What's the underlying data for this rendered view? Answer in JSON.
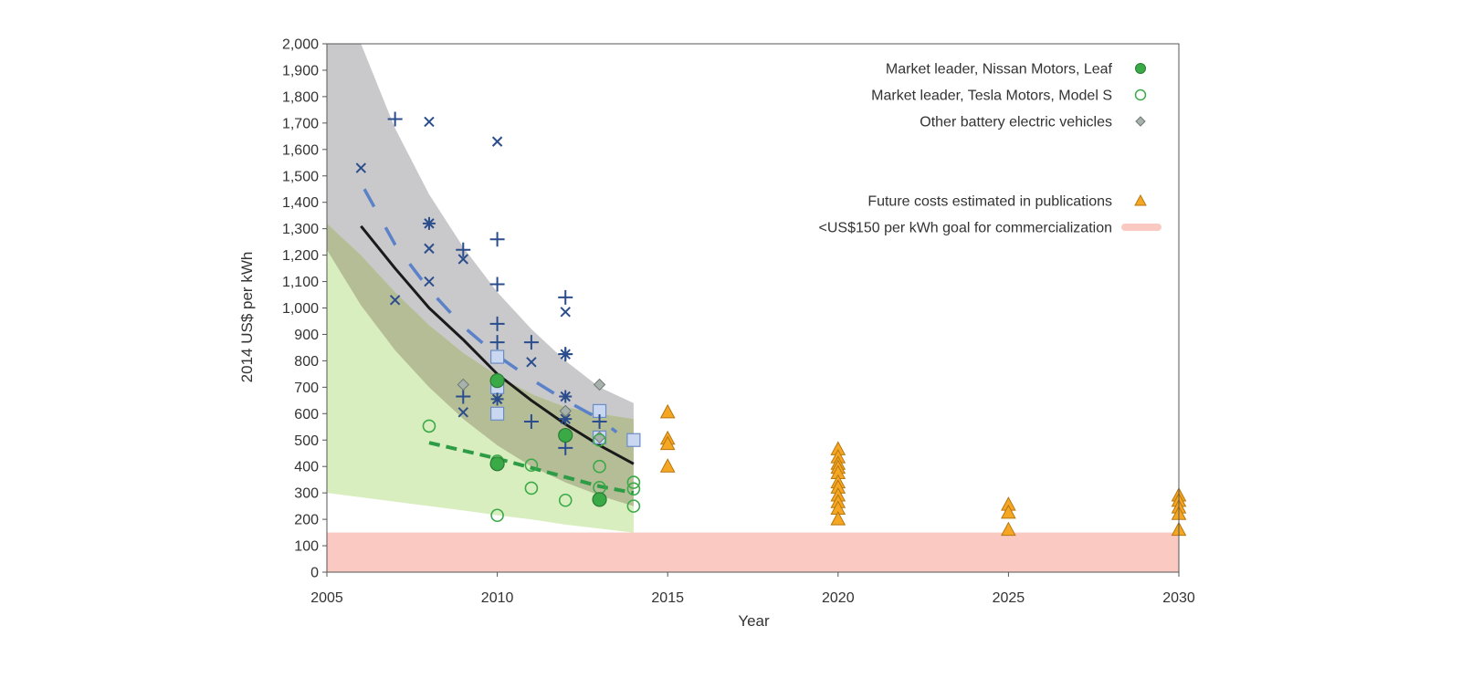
{
  "chart_data": {
    "type": "scatter",
    "xlabel": "Year",
    "ylabel": "2014 US$ per kWh",
    "xlim": [
      2005,
      2030
    ],
    "ylim": [
      0,
      2000
    ],
    "x_ticks": [
      "2005",
      "2010",
      "2015",
      "2020",
      "2025",
      "2030"
    ],
    "y_ticks": [
      "0",
      "100",
      "200",
      "300",
      "400",
      "500",
      "600",
      "700",
      "800",
      "900",
      "1,000",
      "1,100",
      "1,200",
      "1,300",
      "1,400",
      "1,500",
      "1,600",
      "1,700",
      "1,800",
      "1,900",
      "2,000"
    ],
    "grid": false,
    "legend_position": "top-right",
    "colors": {
      "nissan": "#3aaa47",
      "tesla": "#3aaa47",
      "other_bev": "#9aa5a0",
      "future": "#f5a623",
      "goal_band": "#f9c9c2",
      "industry_band": "#c9c9cc",
      "leader_band": "#d9eebf",
      "overlap_band": "#b5bd97",
      "industry_trend": "#1a1a1a",
      "other_trend": "#5b82c9",
      "leader_trend": "#2e9c45",
      "cross": "#2b4d8c",
      "square_fill": "#c9d7f0",
      "square_stroke": "#6c8cc6"
    },
    "legend": [
      {
        "label": "Market leader, Nissan Motors, Leaf",
        "marker": "filled-circle"
      },
      {
        "label": "Market leader, Tesla Motors, Model S",
        "marker": "open-circle"
      },
      {
        "label": "Other battery electric vehicles",
        "marker": "diamond"
      },
      {
        "label": "Future costs estimated in publications",
        "marker": "triangle"
      },
      {
        "label": "<US$150 per kWh goal for commercialization",
        "marker": "band"
      }
    ],
    "goal_band": {
      "y0": 0,
      "y1": 150
    },
    "bands": [
      {
        "name": "industry",
        "upper": [
          [
            2005,
            2000
          ],
          [
            2006,
            2000
          ],
          [
            2007,
            1680
          ],
          [
            2008,
            1430
          ],
          [
            2009,
            1230
          ],
          [
            2010,
            1060
          ],
          [
            2011,
            920
          ],
          [
            2012,
            800
          ],
          [
            2013,
            700
          ],
          [
            2014,
            640
          ]
        ],
        "lower": [
          [
            2014,
            250
          ],
          [
            2013,
            290
          ],
          [
            2012,
            340
          ],
          [
            2011,
            400
          ],
          [
            2010,
            480
          ],
          [
            2009,
            580
          ],
          [
            2008,
            700
          ],
          [
            2007,
            840
          ],
          [
            2006,
            1010
          ],
          [
            2005,
            1220
          ]
        ]
      },
      {
        "name": "leader",
        "upper": [
          [
            2005,
            1320
          ],
          [
            2006,
            1200
          ],
          [
            2007,
            1060
          ],
          [
            2008,
            935
          ],
          [
            2009,
            830
          ],
          [
            2010,
            745
          ],
          [
            2011,
            675
          ],
          [
            2012,
            625
          ],
          [
            2013,
            600
          ],
          [
            2014,
            580
          ]
        ],
        "lower": [
          [
            2014,
            150
          ],
          [
            2013,
            165
          ],
          [
            2012,
            180
          ],
          [
            2011,
            200
          ],
          [
            2010,
            215
          ],
          [
            2009,
            235
          ],
          [
            2008,
            255
          ],
          [
            2007,
            275
          ],
          [
            2006,
            295
          ],
          [
            2005,
            315
          ]
        ]
      },
      {
        "name": "leader-lower-fill",
        "upper": [
          [
            2005,
            930
          ],
          [
            2006,
            830
          ],
          [
            2007,
            730
          ],
          [
            2008,
            640
          ],
          [
            2009,
            565
          ],
          [
            2010,
            500
          ],
          [
            2011,
            445
          ],
          [
            2012,
            400
          ],
          [
            2013,
            360
          ],
          [
            2014,
            330
          ]
        ],
        "lower": [
          [
            2014,
            150
          ],
          [
            2005,
            300
          ]
        ]
      }
    ],
    "trend_lines": [
      {
        "name": "industry",
        "style": "solid",
        "points": [
          [
            2006,
            1310
          ],
          [
            2007,
            1150
          ],
          [
            2008,
            1000
          ],
          [
            2009,
            880
          ],
          [
            2010,
            750
          ],
          [
            2011,
            650
          ],
          [
            2012,
            560
          ],
          [
            2013,
            480
          ],
          [
            2014,
            410
          ]
        ]
      },
      {
        "name": "other-bev",
        "style": "dashed",
        "points": [
          [
            2006.1,
            1450
          ],
          [
            2007,
            1240
          ],
          [
            2008,
            1070
          ],
          [
            2009,
            930
          ],
          [
            2010,
            820
          ],
          [
            2011,
            730
          ],
          [
            2012,
            650
          ],
          [
            2013,
            580
          ],
          [
            2013.5,
            530
          ]
        ]
      },
      {
        "name": "market-leaders",
        "style": "dashed",
        "points": [
          [
            2008,
            490
          ],
          [
            2009,
            460
          ],
          [
            2010,
            430
          ],
          [
            2011,
            395
          ],
          [
            2012,
            360
          ],
          [
            2013,
            325
          ],
          [
            2014,
            300
          ]
        ]
      }
    ],
    "series": [
      {
        "name": "Market leader, Nissan Motors, Leaf",
        "marker": "filled-circle",
        "points": [
          [
            2010,
            725
          ],
          [
            2010,
            410
          ],
          [
            2012,
            518
          ],
          [
            2013,
            275
          ]
        ]
      },
      {
        "name": "Market leader, Tesla Motors, Model S",
        "marker": "open-circle",
        "points": [
          [
            2008,
            553
          ],
          [
            2010,
            420
          ],
          [
            2010,
            215
          ],
          [
            2011,
            405
          ],
          [
            2011,
            318
          ],
          [
            2012,
            272
          ],
          [
            2013,
            400
          ],
          [
            2013,
            320
          ],
          [
            2013,
            500
          ],
          [
            2014,
            340
          ],
          [
            2014,
            315
          ],
          [
            2014,
            250
          ]
        ]
      },
      {
        "name": "Other battery electric vehicles",
        "marker": "diamond",
        "points": [
          [
            2009,
            710
          ],
          [
            2012,
            610
          ],
          [
            2013,
            710
          ],
          [
            2013,
            510
          ]
        ]
      },
      {
        "name": "Future costs estimated in publications",
        "marker": "triangle",
        "points": [
          [
            2015,
            605
          ],
          [
            2015,
            505
          ],
          [
            2015,
            485
          ],
          [
            2015,
            400
          ],
          [
            2020,
            465
          ],
          [
            2020,
            435
          ],
          [
            2020,
            410
          ],
          [
            2020,
            395
          ],
          [
            2020,
            375
          ],
          [
            2020,
            340
          ],
          [
            2020,
            320
          ],
          [
            2020,
            290
          ],
          [
            2020,
            265
          ],
          [
            2020,
            240
          ],
          [
            2020,
            200
          ],
          [
            2025,
            255
          ],
          [
            2025,
            225
          ],
          [
            2025,
            160
          ],
          [
            2030,
            290
          ],
          [
            2030,
            270
          ],
          [
            2030,
            245
          ],
          [
            2030,
            220
          ],
          [
            2030,
            160
          ]
        ]
      },
      {
        "marker": "x",
        "points": [
          [
            2006,
            1530
          ],
          [
            2007,
            1030
          ],
          [
            2008,
            1705
          ],
          [
            2008,
            1225
          ],
          [
            2008,
            1100
          ],
          [
            2009,
            1185
          ],
          [
            2009,
            605
          ],
          [
            2010,
            1630
          ],
          [
            2011,
            795
          ],
          [
            2012,
            985
          ]
        ]
      },
      {
        "marker": "plus",
        "points": [
          [
            2007,
            1715
          ],
          [
            2009,
            1220
          ],
          [
            2009,
            665
          ],
          [
            2010,
            1260
          ],
          [
            2010,
            1090
          ],
          [
            2010,
            940
          ],
          [
            2010,
            870
          ],
          [
            2011,
            870
          ],
          [
            2011,
            570
          ],
          [
            2012,
            1040
          ],
          [
            2012,
            825
          ],
          [
            2012,
            470
          ],
          [
            2013,
            570
          ]
        ]
      },
      {
        "marker": "asterisk",
        "points": [
          [
            2008,
            1320
          ],
          [
            2010,
            655
          ],
          [
            2012,
            825
          ],
          [
            2012,
            665
          ],
          [
            2012,
            580
          ]
        ]
      },
      {
        "marker": "square",
        "points": [
          [
            2010,
            815
          ],
          [
            2010,
            700
          ],
          [
            2010,
            600
          ],
          [
            2013,
            610
          ],
          [
            2013,
            510
          ],
          [
            2014,
            500
          ]
        ]
      }
    ]
  }
}
